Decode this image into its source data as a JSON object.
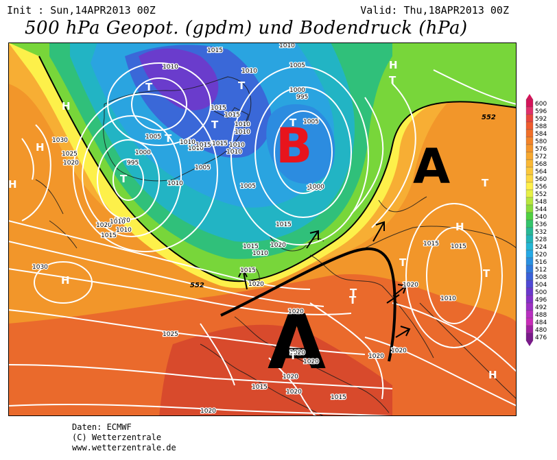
{
  "header": {
    "init": "Init : Sun,14APR2013 00Z",
    "valid": "Valid: Thu,18APR2013 00Z",
    "title": "500 hPa Geopot. (gpdm) und Bodendruck (hPa)"
  },
  "scale": {
    "values": [
      "600",
      "596",
      "592",
      "588",
      "584",
      "580",
      "576",
      "572",
      "568",
      "564",
      "560",
      "556",
      "552",
      "548",
      "544",
      "540",
      "536",
      "532",
      "528",
      "524",
      "520",
      "516",
      "512",
      "508",
      "504",
      "500",
      "496",
      "492",
      "488",
      "484",
      "480",
      "476"
    ],
    "colors": [
      "#d4145a",
      "#e0306a",
      "#e8463c",
      "#ef5c2f",
      "#f0702a",
      "#f3842a",
      "#f5962c",
      "#f7a830",
      "#f9b836",
      "#fbc83c",
      "#fdd842",
      "#fff04a",
      "#e6f046",
      "#b8e63e",
      "#8cdc3c",
      "#50d040",
      "#34c46c",
      "#28b896",
      "#22b4b8",
      "#24b6d4",
      "#26a8e4",
      "#2a90e0",
      "#3078dc",
      "#3a60d8",
      "#5048d4",
      "#6a38cc",
      "#8430c8",
      "#9c30c4",
      "#b830c0",
      "#c82cb8",
      "#a020a0",
      "#7a1a8a"
    ]
  },
  "map": {
    "big_letters": {
      "low": "B",
      "high_east": "A",
      "high_south": "A"
    },
    "pressure_labels": [
      "1010",
      "1015",
      "1005",
      "1010",
      "1005",
      "995",
      "1000",
      "1010",
      "1015",
      "1015",
      "1010",
      "1010",
      "1010",
      "1010",
      "1005",
      "1030",
      "1025",
      "1020",
      "1000",
      "995",
      "1010",
      "1005",
      "1010",
      "1015",
      "1020",
      "1020",
      "1015",
      "1010",
      "1010",
      "1005",
      "1000",
      "1010",
      "1015",
      "1015",
      "1020",
      "1030",
      "1020",
      "1020",
      "1025",
      "1020",
      "1020",
      "1020",
      "1020",
      "1015",
      "1015",
      "1020",
      "1020",
      "1015",
      "1015",
      "1020",
      "1010",
      "1015",
      "1020",
      "1000",
      "1010",
      "1015"
    ],
    "center_labels": [
      "H",
      "H",
      "H",
      "H",
      "H",
      "T",
      "T",
      "T",
      "T",
      "T",
      "T",
      "T",
      "T",
      "T",
      "T",
      "T",
      "T",
      "H",
      "H",
      "T"
    ],
    "line_labels": [
      "552",
      "552"
    ]
  },
  "footer": {
    "source": "Daten: ECMWF",
    "copyright": "(C) Wetterzentrale",
    "url": "www.wetterzentrale.de"
  }
}
